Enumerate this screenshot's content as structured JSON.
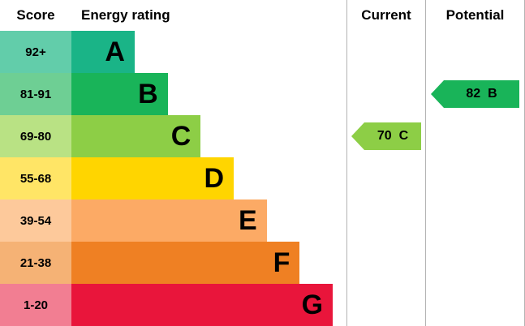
{
  "header": {
    "score": "Score",
    "energy_rating": "Energy rating",
    "current": "Current",
    "potential": "Potential"
  },
  "bands": [
    {
      "score": "92+",
      "letter": "A",
      "color": "#1ab487",
      "tint": "#62cdaa",
      "width_pct": 23
    },
    {
      "score": "81-91",
      "letter": "B",
      "color": "#19b459",
      "tint": "#6ecf94",
      "width_pct": 35
    },
    {
      "score": "69-80",
      "letter": "C",
      "color": "#8dce46",
      "tint": "#b9e284",
      "width_pct": 47
    },
    {
      "score": "55-68",
      "letter": "D",
      "color": "#ffd500",
      "tint": "#ffe566",
      "width_pct": 59
    },
    {
      "score": "39-54",
      "letter": "E",
      "color": "#fcaa65",
      "tint": "#fdc99b",
      "width_pct": 71
    },
    {
      "score": "21-38",
      "letter": "F",
      "color": "#ef8023",
      "tint": "#f5b275",
      "width_pct": 83
    },
    {
      "score": "1-20",
      "letter": "G",
      "color": "#e9153b",
      "tint": "#f27e92",
      "width_pct": 95
    }
  ],
  "current": {
    "value": "70",
    "letter": "C",
    "color": "#8dce46",
    "row": 2
  },
  "potential": {
    "value": "82",
    "letter": "B",
    "color": "#19b459",
    "row": 1
  },
  "chart_data": {
    "type": "bar",
    "title": "Energy rating",
    "categories": [
      "A",
      "B",
      "C",
      "D",
      "E",
      "F",
      "G"
    ],
    "score_ranges": [
      "92+",
      "81-91",
      "69-80",
      "55-68",
      "39-54",
      "21-38",
      "1-20"
    ],
    "band_colors": [
      "#1ab487",
      "#19b459",
      "#8dce46",
      "#ffd500",
      "#fcaa65",
      "#ef8023",
      "#e9153b"
    ],
    "bar_lengths_relative_pct": [
      23,
      35,
      47,
      59,
      71,
      83,
      95
    ],
    "current": {
      "value": 70,
      "band": "C"
    },
    "potential": {
      "value": 82,
      "band": "B"
    },
    "legend_position": "none",
    "grid": false
  }
}
